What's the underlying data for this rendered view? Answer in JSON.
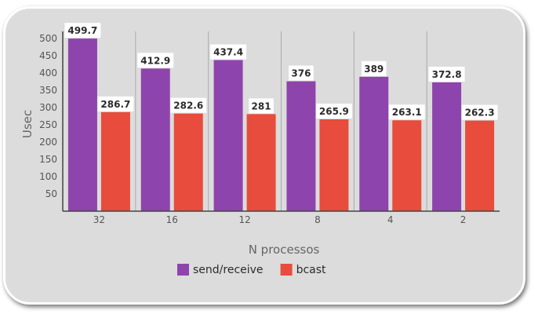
{
  "chart_data": {
    "type": "bar",
    "categories": [
      "32",
      "16",
      "12",
      "8",
      "4",
      "2"
    ],
    "series": [
      {
        "name": "send/receive",
        "color": "#8e44ad",
        "values": [
          499.7,
          412.9,
          437.4,
          376,
          389,
          372.8
        ]
      },
      {
        "name": "bcast",
        "color": "#e74c3c",
        "values": [
          286.7,
          282.6,
          281,
          265.9,
          263.1,
          262.3
        ]
      }
    ],
    "data_labels": {
      "send/receive": [
        "499.7",
        "412.9",
        "437.4",
        "376",
        "389",
        "372.8"
      ],
      "bcast": [
        "286.7",
        "282.6",
        "281",
        "265.9",
        "263.1",
        "262.3"
      ]
    },
    "title": "",
    "xlabel": "N processos",
    "ylabel": "Usec",
    "yticks": [
      50,
      100,
      150,
      200,
      250,
      300,
      350,
      400,
      450,
      500
    ],
    "ylim": [
      0,
      500
    ],
    "grid": "vertical",
    "legend_position": "bottom-center"
  }
}
